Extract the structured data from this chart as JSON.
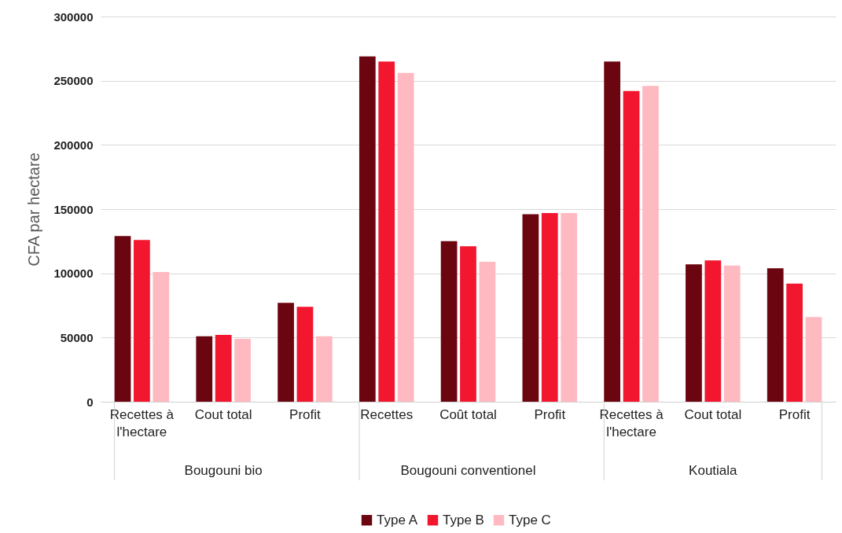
{
  "chart_data": {
    "type": "bar",
    "categories": [
      "Recettes à l'hectare",
      "Cout total",
      "Profit",
      "Recettes",
      "Coût total",
      "Profit",
      "Recettes à l'hectare",
      "Cout total",
      "Profit"
    ],
    "series": [
      {
        "name": "Type A",
        "color": "#6b0510",
        "values": [
          129000,
          51000,
          77000,
          269000,
          125000,
          146000,
          265000,
          107000,
          104000
        ]
      },
      {
        "name": "Type B",
        "color": "#f2162e",
        "values": [
          126000,
          52000,
          74000,
          265000,
          121000,
          147000,
          242000,
          110000,
          92000
        ]
      },
      {
        "name": "Type C",
        "color": "#ffb9c0",
        "values": [
          101000,
          49000,
          51000,
          256000,
          109000,
          147000,
          246000,
          106000,
          66000
        ]
      }
    ],
    "annotations": [
      "Bougouni bio",
      "Bougouni conventionel",
      "Koutiala"
    ],
    "ylabel": "CFA par hectare",
    "ylim": [
      0,
      300000
    ],
    "yticks": [
      0,
      50000,
      100000,
      150000,
      200000,
      250000,
      300000
    ],
    "grid": "y",
    "legend": "bottom"
  }
}
